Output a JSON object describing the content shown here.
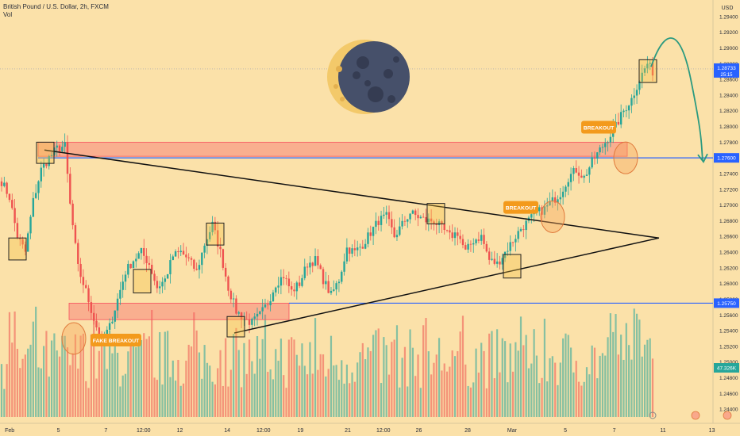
{
  "header": {
    "symbol": "British Pound / U.S. Dollar, 2h, FXCM",
    "volume_label": "Vol"
  },
  "chart_data": {
    "type": "candlestick",
    "instrument": "British Pound / U.S. Dollar",
    "timeframe": "2h",
    "source": "FXCM",
    "currency": "USD",
    "price_axis": {
      "ylim": [
        1.2425,
        1.2955
      ],
      "ticks": [
        "1.29400",
        "1.29200",
        "1.29000",
        "1.28800",
        "1.28600",
        "1.28400",
        "1.28200",
        "1.28000",
        "1.27800",
        "1.27600",
        "1.27400",
        "1.27200",
        "1.27000",
        "1.26800",
        "1.26600",
        "1.26400",
        "1.26200",
        "1.26000",
        "1.25800",
        "1.25600",
        "1.25400",
        "1.25200",
        "1.25000",
        "1.24800",
        "1.24600",
        "1.24400"
      ],
      "tick_values": [
        1.294,
        1.292,
        1.29,
        1.288,
        1.286,
        1.284,
        1.282,
        1.28,
        1.278,
        1.276,
        1.274,
        1.272,
        1.27,
        1.268,
        1.266,
        1.264,
        1.262,
        1.26,
        1.258,
        1.256,
        1.254,
        1.252,
        1.25,
        1.248,
        1.246,
        1.244
      ]
    },
    "time_axis": {
      "labels": [
        "Feb",
        "5",
        "7",
        "12:00",
        "12",
        "14",
        "12:00",
        "19",
        "21",
        "12:00",
        "26",
        "28",
        "Mar",
        "5",
        "7",
        "11",
        "13"
      ],
      "label_x_frac": [
        0.013,
        0.079,
        0.143,
        0.194,
        0.243,
        0.307,
        0.356,
        0.406,
        0.47,
        0.518,
        0.566,
        0.632,
        0.692,
        0.764,
        0.83,
        0.896,
        0.962
      ]
    },
    "current_price": {
      "value": 1.28733,
      "label": "1.28733",
      "countdown": "25:15"
    },
    "horizontal_lines": [
      {
        "value": 1.276,
        "label": "1.27600",
        "color": "#2962ff"
      },
      {
        "value": 1.2575,
        "label": "1.25750",
        "color": "#2962ff"
      }
    ],
    "volume_label": {
      "value": "47.326K",
      "color": "#26a69a"
    },
    "zones": [
      {
        "from": 1.2762,
        "to": 1.278,
        "color": "#f7525f"
      },
      {
        "from": 1.2554,
        "to": 1.2575,
        "color": "#f7525f"
      }
    ],
    "triangle": {
      "apex_price": 1.2658,
      "upper_start_price": 1.277,
      "lower_start_price": 1.2537
    },
    "annotations": [
      {
        "text": "FAKE BREAKOUT",
        "price": 1.2528
      },
      {
        "text": "BREAKOUT",
        "price": 1.2697
      },
      {
        "text": "BREAKOUT",
        "price": 1.2799
      }
    ],
    "projection": {
      "from_price": 1.2876,
      "peak_price": 1.2898,
      "to_price": 1.2762
    },
    "moon_icon": "waning-moon-icon",
    "colors": {
      "up": "#26a69a",
      "down": "#ef5350",
      "background": "#fbe1a9",
      "line": "#2962ff",
      "projection": "#2b9a80"
    },
    "waypoints": [
      [
        0,
        1.273
      ],
      [
        3,
        1.271
      ],
      [
        6,
        1.266
      ],
      [
        9,
        1.264
      ],
      [
        12,
        1.2705
      ],
      [
        15,
        1.2745
      ],
      [
        18,
        1.276
      ],
      [
        21,
        1.2772
      ],
      [
        24,
        1.2775
      ],
      [
        26,
        1.27
      ],
      [
        29,
        1.262
      ],
      [
        32,
        1.259
      ],
      [
        35,
        1.2555
      ],
      [
        38,
        1.2525
      ],
      [
        41,
        1.2545
      ],
      [
        44,
        1.258
      ],
      [
        47,
        1.2615
      ],
      [
        50,
        1.263
      ],
      [
        53,
        1.264
      ],
      [
        56,
        1.2625
      ],
      [
        59,
        1.2595
      ],
      [
        62,
        1.2605
      ],
      [
        65,
        1.2635
      ],
      [
        68,
        1.264
      ],
      [
        71,
        1.263
      ],
      [
        74,
        1.2615
      ],
      [
        77,
        1.265
      ],
      [
        80,
        1.2675
      ],
      [
        83,
        1.264
      ],
      [
        86,
        1.2595
      ],
      [
        89,
        1.2565
      ],
      [
        92,
        1.2555
      ],
      [
        95,
        1.255
      ],
      [
        98,
        1.256
      ],
      [
        101,
        1.2575
      ],
      [
        104,
        1.26
      ],
      [
        107,
        1.261
      ],
      [
        110,
        1.259
      ],
      [
        113,
        1.26
      ],
      [
        116,
        1.2625
      ],
      [
        119,
        1.263
      ],
      [
        122,
        1.2605
      ],
      [
        125,
        1.2585
      ],
      [
        128,
        1.2605
      ],
      [
        131,
        1.2645
      ],
      [
        134,
        1.264
      ],
      [
        137,
        1.265
      ],
      [
        140,
        1.2665
      ],
      [
        143,
        1.268
      ],
      [
        146,
        1.2685
      ],
      [
        149,
        1.266
      ],
      [
        152,
        1.2675
      ],
      [
        155,
        1.269
      ],
      [
        158,
        1.2685
      ],
      [
        161,
        1.268
      ],
      [
        164,
        1.268
      ],
      [
        167,
        1.267
      ],
      [
        170,
        1.266
      ],
      [
        173,
        1.2665
      ],
      [
        176,
        1.264
      ],
      [
        179,
        1.2655
      ],
      [
        182,
        1.266
      ],
      [
        185,
        1.263
      ],
      [
        188,
        1.2625
      ],
      [
        191,
        1.264
      ],
      [
        194,
        1.2655
      ],
      [
        197,
        1.267
      ],
      [
        200,
        1.268
      ],
      [
        203,
        1.269
      ],
      [
        206,
        1.2695
      ],
      [
        209,
        1.2705
      ],
      [
        212,
        1.2715
      ],
      [
        215,
        1.2735
      ],
      [
        218,
        1.2745
      ],
      [
        221,
        1.2735
      ],
      [
        224,
        1.2755
      ],
      [
        227,
        1.277
      ],
      [
        230,
        1.2785
      ],
      [
        233,
        1.28
      ],
      [
        236,
        1.282
      ],
      [
        239,
        1.2835
      ],
      [
        242,
        1.286
      ],
      [
        245,
        1.288
      ],
      [
        247,
        1.287
      ]
    ],
    "volume_range": [
      0.05,
      1.0
    ]
  }
}
